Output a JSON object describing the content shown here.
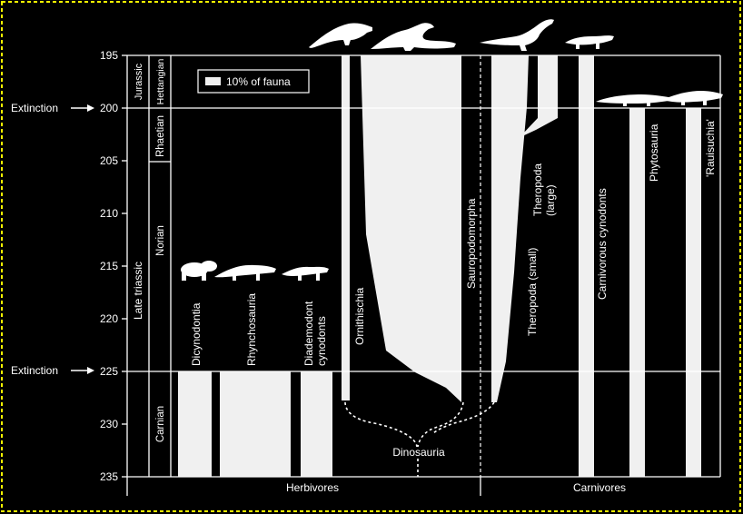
{
  "colors": {
    "background": "#000000",
    "border": "#ffff00",
    "fill": "#f0f0f0",
    "line": "#ffffff"
  },
  "time_axis": {
    "ticks": [
      "195",
      "200",
      "205",
      "210",
      "215",
      "220",
      "225",
      "230",
      "235"
    ]
  },
  "extinctions": [
    {
      "label": "Extinction",
      "at": 200
    },
    {
      "label": "Extinction",
      "at": 225
    }
  ],
  "periods": {
    "jurassic": "Jurassic",
    "late_triassic": "Late triassic"
  },
  "stages": {
    "hettangian": "Hettangian",
    "rhaetian": "Rhaetian",
    "norian": "Norian",
    "carnian": "Carnian"
  },
  "legend": {
    "label": "10% of fauna"
  },
  "groups": {
    "dicynodontia": "Dicynodontia",
    "rhynchosauria": "Rhynchosauria",
    "diademodont_1": "Diademodont",
    "diademodont_2": "cynodonts",
    "ornithischia": "Ornithischia",
    "sauropodomorpha": "Sauropodomorpha",
    "theropoda_small": "Theropoda (small)",
    "theropoda_large_1": "Theropoda",
    "theropoda_large_2": "(large)",
    "carnivorous_cynodonts": "Carnivorous cynodonts",
    "phytosauria": "Phytosauria",
    "rauisuchia": "'Rauisuchia'",
    "dinosauria": "Dinosauria"
  },
  "footer": {
    "herbivores": "Herbivores",
    "carnivores": "Carnivores"
  },
  "silhouettes": [
    "dicynodont-icon",
    "rhynchosaur-icon",
    "cynodont-icon",
    "ornithischian-icon",
    "prosauropod-icon",
    "theropod-icon",
    "small-cynodont-icon",
    "phytosaur-icon",
    "rauisuchian-icon"
  ]
}
